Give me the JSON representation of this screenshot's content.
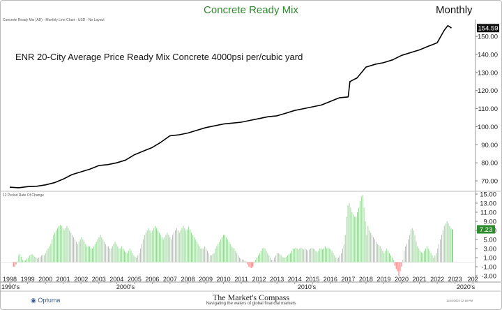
{
  "title": "Concrete Ready Mix",
  "period": "Monthly",
  "subtitle": "Concrete Ready Mix (AD) - Monthly Line Chart - USD - No Layout",
  "annotation": "ENR 20-City Average Price Ready Mix Concrete 4000psi per/cubic yard",
  "footer": {
    "brand": "The Market's Compass",
    "tagline": "Navigating the waters of global financial markets",
    "logo": "Optuma",
    "timestamp": "11/10/2022 12:18 PM"
  },
  "chart_data": [
    {
      "type": "line",
      "name": "price",
      "y_ticks": [
        "150.00",
        "140.00",
        "130.00",
        "120.00",
        "110.00",
        "100.00",
        "90.00",
        "80.00",
        "70.00"
      ],
      "ylim": [
        65,
        157
      ],
      "last_value_label": "154.59",
      "x": [
        1998.0,
        1998.5,
        1999.0,
        1999.5,
        2000.0,
        2000.5,
        2001.0,
        2001.5,
        2002.0,
        2002.5,
        2003.0,
        2003.5,
        2004.0,
        2004.5,
        2005.0,
        2005.5,
        2006.0,
        2006.5,
        2007.0,
        2007.5,
        2008.0,
        2008.5,
        2009.0,
        2009.5,
        2010.0,
        2010.5,
        2011.0,
        2011.5,
        2012.0,
        2012.5,
        2013.0,
        2013.5,
        2014.0,
        2014.5,
        2015.0,
        2015.5,
        2016.0,
        2016.5,
        2017.0,
        2017.1,
        2017.5,
        2018.0,
        2018.5,
        2019.0,
        2019.5,
        2020.0,
        2020.5,
        2021.0,
        2021.5,
        2022.0,
        2022.4,
        2022.6,
        2022.8
      ],
      "values": [
        66.5,
        66.2,
        66.8,
        67.0,
        67.8,
        69.0,
        71.0,
        73.5,
        75.0,
        76.5,
        78.5,
        79.0,
        80.0,
        81.5,
        84.5,
        86.5,
        88.5,
        91.5,
        95.0,
        95.5,
        96.5,
        98.0,
        99.5,
        100.5,
        101.5,
        102.0,
        102.5,
        103.5,
        104.5,
        105.5,
        106.0,
        107.5,
        109.0,
        110.0,
        111.0,
        112.0,
        114.0,
        116.0,
        116.5,
        125.0,
        127.0,
        133.0,
        134.5,
        135.5,
        137.0,
        139.5,
        141.0,
        142.5,
        144.5,
        146.5,
        153.5,
        156.0,
        154.59
      ]
    },
    {
      "type": "bar",
      "name": "12 Period Rate Of Change",
      "y_ticks": [
        "15.00",
        "13.00",
        "11.00",
        "9.00",
        "7.00",
        "5.00",
        "3.00",
        "1.00",
        "-1.00",
        "-3.00"
      ],
      "ylim": [
        -3,
        15.3
      ],
      "last_value_label": "7.23",
      "values": [
        -1.0,
        -1.0,
        -0.5,
        0.2,
        1.5,
        1.8,
        1.2,
        0.5,
        0.3,
        0.4,
        0.8,
        1.0,
        1.5,
        1.6,
        1.8,
        1.5,
        1.2,
        1.0,
        0.8,
        1.0,
        1.2,
        1.5,
        1.6,
        1.5,
        2.0,
        2.5,
        3.0,
        3.5,
        4.0,
        5.0,
        6.0,
        6.5,
        7.0,
        7.5,
        8.0,
        8.2,
        8.0,
        7.5,
        7.0,
        7.5,
        8.0,
        7.5,
        7.0,
        6.5,
        6.0,
        5.5,
        5.0,
        4.5,
        4.0,
        4.5,
        5.0,
        5.5,
        5.0,
        4.5,
        4.0,
        3.5,
        3.5,
        3.5,
        3.0,
        3.0,
        3.5,
        4.0,
        4.5,
        5.0,
        5.5,
        6.0,
        5.5,
        5.0,
        4.5,
        4.0,
        3.5,
        3.5,
        3.0,
        3.0,
        3.5,
        4.0,
        4.5,
        4.0,
        3.5,
        3.0,
        3.0,
        3.5,
        3.0,
        2.5,
        2.2,
        2.0,
        2.5,
        3.0,
        2.5,
        2.0,
        1.5,
        1.2,
        1.0,
        1.5,
        2.0,
        3.0,
        4.0,
        5.0,
        6.0,
        6.5,
        7.0,
        7.5,
        7.0,
        6.5,
        7.0,
        7.5,
        8.0,
        7.5,
        7.0,
        6.5,
        6.0,
        5.5,
        5.0,
        5.5,
        6.0,
        6.5,
        6.0,
        5.5,
        5.0,
        6.0,
        6.5,
        7.0,
        7.5,
        7.0,
        6.5,
        7.0,
        7.5,
        8.0,
        7.5,
        7.0,
        7.2,
        7.8,
        7.2,
        6.5,
        6.0,
        5.5,
        5.0,
        4.5,
        4.0,
        3.5,
        3.0,
        3.0,
        3.0,
        3.5,
        3.0,
        2.5,
        2.0,
        1.5,
        1.5,
        1.8,
        2.0,
        3.0,
        3.5,
        4.0,
        4.5,
        5.0,
        5.5,
        6.0,
        6.0,
        5.5,
        5.0,
        4.5,
        4.0,
        3.5,
        3.2,
        3.0,
        2.5,
        2.0,
        1.5,
        1.0,
        0.8,
        0.6,
        0.5,
        0.3,
        0.2,
        -0.5,
        -1.0,
        -1.2,
        -1.3,
        -1.0,
        0.2,
        0.5,
        1.0,
        1.5,
        2.0,
        2.5,
        3.0,
        3.2,
        3.0,
        2.5,
        2.0,
        1.5,
        1.0,
        0.5,
        0.5,
        1.0,
        1.5,
        2.0,
        2.0,
        1.8,
        1.5,
        1.2,
        1.0,
        1.0,
        1.2,
        1.5,
        1.8,
        2.0,
        2.5,
        3.0,
        3.0,
        3.2,
        3.0,
        2.8,
        3.0,
        3.2,
        3.0,
        2.8,
        3.0,
        2.8,
        2.5,
        2.8,
        3.0,
        3.2,
        3.0,
        2.8,
        2.5,
        2.2,
        2.5,
        3.0,
        3.0,
        2.8,
        3.0,
        3.5,
        3.0,
        3.2,
        3.0,
        2.8,
        2.5,
        2.0,
        1.5,
        1.0,
        0.8,
        1.0,
        1.5,
        2.0,
        3.0,
        4.0,
        6.0,
        10.0,
        12.5,
        13.0,
        12.0,
        11.0,
        10.5,
        10.0,
        10.0,
        11.0,
        12.0,
        13.5,
        14.5,
        14.8,
        12.0,
        9.0,
        6.0,
        8.0,
        7.0,
        6.5,
        6.0,
        5.5,
        5.0,
        4.5,
        4.0,
        3.8,
        3.5,
        3.0,
        2.5,
        2.0,
        2.5,
        3.0,
        2.5,
        2.0,
        1.5,
        1.0,
        0.5,
        -0.8,
        -1.5,
        -2.0,
        -3.0,
        -2.0,
        -1.0,
        0.5,
        2.5,
        3.5,
        4.0,
        5.0,
        6.0,
        7.0,
        7.5,
        7.0,
        6.0,
        4.5,
        3.5,
        3.0,
        2.5,
        2.2,
        2.0,
        2.5,
        3.0,
        3.5,
        3.0,
        2.5,
        2.0,
        1.5,
        1.0,
        1.5,
        2.0,
        3.0,
        4.0,
        5.0,
        6.0,
        7.0,
        8.0,
        8.5,
        9.0,
        8.5,
        8.0,
        7.5,
        7.23
      ]
    }
  ],
  "x_axis": {
    "years": [
      "1998",
      "1999",
      "2000",
      "2001",
      "2002",
      "2003",
      "2004",
      "2005",
      "2006",
      "2007",
      "2008",
      "2009",
      "2010",
      "2011",
      "2012",
      "2013",
      "2014",
      "2015",
      "2016",
      "2017",
      "2018",
      "2019",
      "2020",
      "2021",
      "2022",
      "2023",
      "202"
    ],
    "decades": [
      "1990's",
      "2000's",
      "2010's",
      "2020's"
    ]
  },
  "colors": {
    "line": "#000000",
    "bar_pos": "#8fd48f",
    "bar_neg": "#ff5a5a",
    "bar_last": "#2e8b2e",
    "title": "#2f8a2f"
  }
}
